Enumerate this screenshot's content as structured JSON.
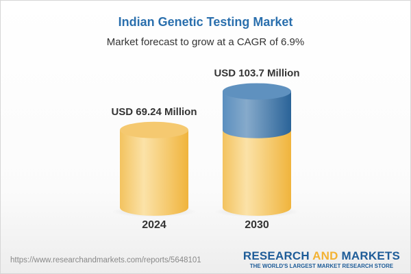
{
  "chart_data": {
    "type": "bar",
    "style": "3d-cylinder",
    "title": "Indian Genetic Testing Market",
    "subtitle": "Market forecast to grow at a CAGR of 6.9%",
    "categories": [
      "2024",
      "2030"
    ],
    "values": [
      69.24,
      103.7
    ],
    "data_labels": [
      "USD 69.24 Million",
      "USD 103.7 Million"
    ],
    "unit": "USD Million",
    "colors": {
      "base": "#f3c466",
      "growth": "#4e86b8"
    }
  },
  "footer": {
    "url": "https://www.researchandmarkets.com/reports/5648101",
    "logo_part1": "RESEARCH ",
    "logo_part2": "AND",
    "logo_part3": " MARKETS",
    "tagline": "THE WORLD'S LARGEST MARKET RESEARCH STORE"
  }
}
